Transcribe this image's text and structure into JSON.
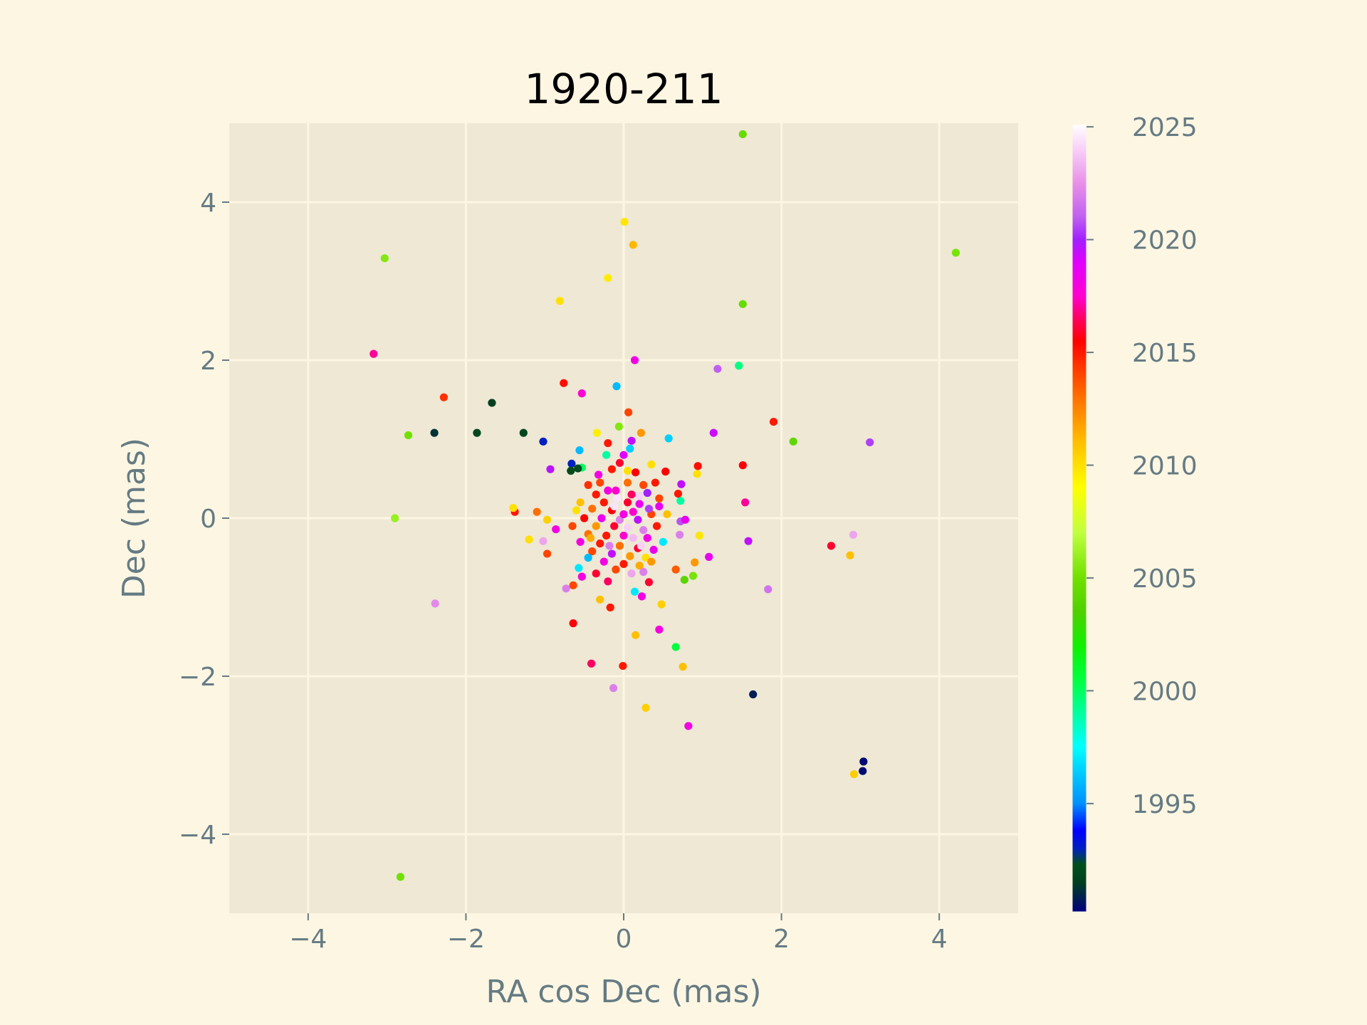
{
  "chart_data": {
    "type": "scatter",
    "title": "1920-211",
    "xlabel": "RA cos Dec (mas)",
    "ylabel": "Dec (mas)",
    "xlim": [
      -5,
      5
    ],
    "ylim": [
      -5,
      5
    ],
    "xticks": [
      -4,
      -2,
      0,
      2,
      4
    ],
    "xtick_labels": [
      "−4",
      "−2",
      "0",
      "2",
      "4"
    ],
    "yticks": [
      -4,
      -2,
      0,
      2,
      4
    ],
    "ytick_labels": [
      "−4",
      "−2",
      "0",
      "2",
      "4"
    ],
    "grid": true,
    "colorbar": {
      "label": "",
      "range": [
        1990.2,
        2025.1
      ],
      "ticks": [
        1995,
        2000,
        2005,
        2010,
        2015,
        2020,
        2025
      ],
      "tick_labels": [
        "1995",
        "2000",
        "2005",
        "2010",
        "2015",
        "2020",
        "2025"
      ],
      "colormap": "gist_ncar",
      "stops": [
        [
          1990.2,
          "#000080"
        ],
        [
          1991.5,
          "#004020"
        ],
        [
          1992.3,
          "#00501a"
        ],
        [
          1993.0,
          "#0020c0"
        ],
        [
          1993.8,
          "#0000ff"
        ],
        [
          1995.0,
          "#0090ff"
        ],
        [
          1996.5,
          "#00d0ff"
        ],
        [
          1997.5,
          "#00ffff"
        ],
        [
          1999.0,
          "#00ffa0"
        ],
        [
          2000.5,
          "#00ff40"
        ],
        [
          2002.0,
          "#10f000"
        ],
        [
          2003.5,
          "#50d000"
        ],
        [
          2005.0,
          "#70e000"
        ],
        [
          2007.0,
          "#c0ff40"
        ],
        [
          2009.0,
          "#ffff00"
        ],
        [
          2011.0,
          "#ffc000"
        ],
        [
          2013.0,
          "#ff7000"
        ],
        [
          2014.5,
          "#ff3000"
        ],
        [
          2015.5,
          "#ff0000"
        ],
        [
          2016.5,
          "#ff0060"
        ],
        [
          2017.5,
          "#ff00d0"
        ],
        [
          2019.0,
          "#e000ff"
        ],
        [
          2020.0,
          "#a020ff"
        ],
        [
          2021.0,
          "#c060f0"
        ],
        [
          2022.5,
          "#e890e8"
        ],
        [
          2024.0,
          "#f8d0f8"
        ],
        [
          2025.1,
          "#ffffff"
        ]
      ]
    },
    "point_fields": [
      "ra_cos_dec_mas",
      "dec_mas",
      "epoch_year"
    ],
    "points": [
      [
        1.51,
        4.86,
        2004.5
      ],
      [
        0.01,
        3.75,
        2009.8
      ],
      [
        0.12,
        3.46,
        2011.2
      ],
      [
        -0.2,
        3.04,
        2009.6
      ],
      [
        -0.81,
        2.75,
        2010
      ],
      [
        -3.03,
        3.29,
        2005.5
      ],
      [
        4.21,
        3.36,
        2005.2
      ],
      [
        1.51,
        2.71,
        2004.5
      ],
      [
        -3.17,
        2.08,
        2017
      ],
      [
        0.14,
        2.0,
        2018.2
      ],
      [
        1.19,
        1.89,
        2021
      ],
      [
        1.46,
        1.93,
        1999.5
      ],
      [
        -0.76,
        1.71,
        2015.2
      ],
      [
        -0.53,
        1.58,
        2017.6
      ],
      [
        -0.09,
        1.67,
        1996
      ],
      [
        -2.28,
        1.53,
        2014.5
      ],
      [
        -1.67,
        1.46,
        1991.5
      ],
      [
        0.06,
        1.34,
        2014
      ],
      [
        1.9,
        1.22,
        2015
      ],
      [
        -2.4,
        1.08,
        1991.2
      ],
      [
        -1.86,
        1.08,
        1991.8
      ],
      [
        -1.27,
        1.08,
        1991.8
      ],
      [
        -2.73,
        1.05,
        2005
      ],
      [
        -1.02,
        0.97,
        1993
      ],
      [
        2.15,
        0.97,
        2004.2
      ],
      [
        3.12,
        0.96,
        2020.5
      ],
      [
        1.14,
        1.08,
        2019.3
      ],
      [
        0.57,
        1.01,
        1996.5
      ],
      [
        -0.06,
        1.16,
        2005.5
      ],
      [
        -0.34,
        1.08,
        2009.5
      ],
      [
        0.22,
        1.08,
        2012
      ],
      [
        1.51,
        0.67,
        2015.6
      ],
      [
        0.94,
        0.66,
        2015.2
      ],
      [
        -0.93,
        0.62,
        2019.6
      ],
      [
        -1.38,
        0.08,
        2015
      ],
      [
        -1.4,
        0.13,
        2010
      ],
      [
        -2.9,
        0.0,
        2006
      ],
      [
        -2.39,
        -1.08,
        2022.3
      ],
      [
        -1.2,
        -0.27,
        2010
      ],
      [
        -0.97,
        -0.45,
        2014
      ],
      [
        -0.86,
        -0.14,
        2018
      ],
      [
        -1.02,
        -0.29,
        2023
      ],
      [
        -0.97,
        -0.02,
        2010.5
      ],
      [
        -1.1,
        0.08,
        2013
      ],
      [
        1.54,
        0.2,
        2017
      ],
      [
        1.58,
        -0.29,
        2019.5
      ],
      [
        2.63,
        -0.35,
        2016
      ],
      [
        2.91,
        -0.21,
        2023
      ],
      [
        2.87,
        -0.47,
        2011
      ],
      [
        1.83,
        -0.9,
        2021.6
      ],
      [
        1.08,
        -0.49,
        2018.6
      ],
      [
        0.96,
        -0.22,
        2009.8
      ],
      [
        0.9,
        -0.56,
        2012
      ],
      [
        0.77,
        -0.78,
        2004
      ],
      [
        0.88,
        -0.73,
        2005.2
      ],
      [
        0.66,
        -0.65,
        2013.5
      ],
      [
        0.72,
        0.22,
        1999
      ],
      [
        0.69,
        0.31,
        2015
      ],
      [
        0.73,
        0.43,
        2019.5
      ],
      [
        0.71,
        -0.21,
        2022
      ],
      [
        0.72,
        -0.04,
        2020.8
      ],
      [
        0.78,
        -0.02,
        2018.5
      ],
      [
        0.48,
        -1.09,
        2010.5
      ],
      [
        0.45,
        -1.41,
        2018
      ],
      [
        0.15,
        -1.48,
        2011
      ],
      [
        0.66,
        -1.63,
        2000.5
      ],
      [
        0.75,
        -1.88,
        2011
      ],
      [
        -0.01,
        -1.87,
        2015
      ],
      [
        -0.41,
        -1.84,
        2016.5
      ],
      [
        -0.13,
        -2.15,
        2022
      ],
      [
        0.28,
        -2.4,
        2010.5
      ],
      [
        0.82,
        -2.63,
        2018
      ],
      [
        1.64,
        -2.23,
        1990.8
      ],
      [
        3.04,
        -3.08,
        1990.4
      ],
      [
        3.03,
        -3.2,
        1990.4
      ],
      [
        2.92,
        -3.24,
        2010.6
      ],
      [
        -2.83,
        -4.54,
        2005
      ],
      [
        -0.64,
        -1.33,
        2015.6
      ],
      [
        -0.17,
        -1.13,
        2015
      ],
      [
        -0.3,
        -1.03,
        2011
      ],
      [
        -0.73,
        -0.89,
        2022
      ],
      [
        -0.64,
        -0.85,
        2014
      ],
      [
        -0.53,
        -0.74,
        2018
      ],
      [
        -0.57,
        -0.63,
        1997
      ],
      [
        0.14,
        -0.93,
        1997
      ],
      [
        0.23,
        -0.99,
        2018
      ],
      [
        0.32,
        -0.81,
        2016
      ],
      [
        -0.53,
        0.64,
        2000
      ],
      [
        -0.56,
        0.86,
        1996
      ],
      [
        -0.66,
        0.69,
        1993
      ],
      [
        -0.67,
        0.6,
        1992
      ],
      [
        -0.58,
        0.63,
        1992
      ],
      [
        0.35,
        0.68,
        2010
      ],
      [
        0.53,
        0.59,
        2015.5
      ],
      [
        0.93,
        0.56,
        2010
      ],
      [
        -0.2,
        0.95,
        2015
      ],
      [
        -0.22,
        0.8,
        1999
      ],
      [
        -0.05,
        0.7,
        2016
      ],
      [
        0.08,
        0.88,
        1996.5
      ],
      [
        0.1,
        0.98,
        2019.5
      ],
      [
        0.0,
        0.8,
        2019
      ],
      [
        -0.15,
        0.62,
        2015
      ],
      [
        0.15,
        0.58,
        2015.5
      ],
      [
        -0.3,
        0.45,
        2014
      ],
      [
        0.05,
        0.45,
        2013
      ],
      [
        0.25,
        0.42,
        2014
      ],
      [
        -0.45,
        0.42,
        2014.5
      ],
      [
        -0.1,
        0.35,
        2017.5
      ],
      [
        0.3,
        0.32,
        2020
      ],
      [
        -0.35,
        0.3,
        2015
      ],
      [
        0.45,
        0.25,
        2014
      ],
      [
        -0.55,
        0.2,
        2011
      ],
      [
        -0.25,
        0.2,
        2015
      ],
      [
        0.05,
        0.2,
        2016
      ],
      [
        0.2,
        0.18,
        2018.5
      ],
      [
        -0.6,
        0.1,
        2010
      ],
      [
        -0.4,
        0.12,
        2013
      ],
      [
        -0.15,
        0.1,
        2015.5
      ],
      [
        0.12,
        0.08,
        2017.5
      ],
      [
        0.35,
        0.05,
        2014
      ],
      [
        0.55,
        0.05,
        2011
      ],
      [
        -0.5,
        0.0,
        2015.5
      ],
      [
        -0.28,
        0.0,
        2018.5
      ],
      [
        -0.05,
        -0.02,
        2022
      ],
      [
        0.18,
        -0.02,
        2019.5
      ],
      [
        0.42,
        -0.1,
        2015
      ],
      [
        -0.65,
        -0.1,
        2014
      ],
      [
        -0.35,
        -0.1,
        2012
      ],
      [
        -0.12,
        -0.1,
        2016
      ],
      [
        0.05,
        -0.12,
        2024
      ],
      [
        0.25,
        -0.15,
        2022
      ],
      [
        -0.45,
        -0.2,
        2013
      ],
      [
        -0.22,
        -0.22,
        2015
      ],
      [
        0.0,
        -0.22,
        2017.5
      ],
      [
        0.3,
        -0.25,
        2018
      ],
      [
        0.5,
        -0.3,
        1997
      ],
      [
        -0.55,
        -0.3,
        2018
      ],
      [
        -0.3,
        -0.32,
        2015
      ],
      [
        -0.05,
        -0.35,
        2013
      ],
      [
        0.18,
        -0.38,
        2016
      ],
      [
        0.38,
        -0.4,
        2018.5
      ],
      [
        -0.4,
        -0.42,
        2014
      ],
      [
        -0.15,
        -0.45,
        2019.5
      ],
      [
        0.08,
        -0.48,
        2012
      ],
      [
        0.28,
        -0.5,
        2010
      ],
      [
        -0.25,
        -0.55,
        2018
      ],
      [
        0.0,
        -0.58,
        2015
      ],
      [
        0.2,
        -0.6,
        2011.5
      ],
      [
        -0.1,
        -0.65,
        2014
      ],
      [
        0.1,
        -0.7,
        2023
      ],
      [
        -0.35,
        -0.7,
        2016
      ],
      [
        0.25,
        -0.68,
        2022
      ],
      [
        -0.2,
        -0.8,
        2016.5
      ],
      [
        0.35,
        -0.55,
        2012
      ],
      [
        -0.45,
        -0.5,
        1996
      ],
      [
        0.45,
        0.15,
        2018.5
      ],
      [
        -0.08,
        0.25,
        2024.5
      ],
      [
        0.1,
        0.3,
        2016.5
      ],
      [
        -0.2,
        0.35,
        2018
      ],
      [
        0.2,
        0.28,
        2024
      ],
      [
        0.0,
        0.05,
        2018
      ],
      [
        0.12,
        -0.25,
        2023.5
      ],
      [
        -0.32,
        0.55,
        2018
      ],
      [
        0.4,
        0.45,
        2015
      ],
      [
        -0.12,
        0.15,
        2024.5
      ],
      [
        0.22,
        -0.35,
        2024
      ],
      [
        -0.18,
        -0.35,
        2022
      ],
      [
        0.32,
        0.12,
        2020.5
      ],
      [
        -0.42,
        -0.25,
        2011.5
      ],
      [
        0.05,
        0.6,
        2010
      ]
    ]
  }
}
